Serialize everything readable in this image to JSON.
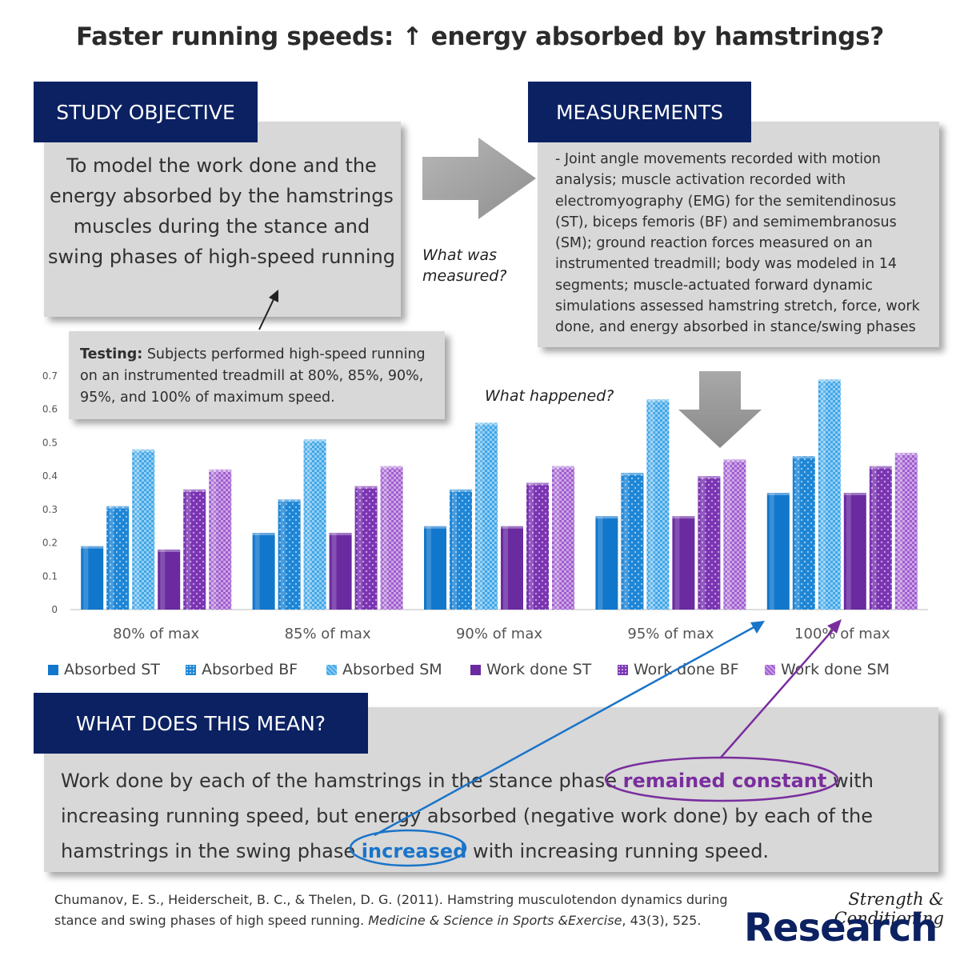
{
  "title": "Faster running speeds: ↑ energy absorbed by hamstrings?",
  "study_objective": {
    "label": "STUDY OBJECTIVE",
    "text": "To model the work done and the energy absorbed by the hamstrings muscles during the stance and swing phases of high-speed running"
  },
  "measurements": {
    "label": "MEASUREMENTS",
    "text": "- Joint angle movements recorded with motion analysis; muscle activation recorded with electromyography (EMG) for the semitendinosus (ST), biceps femoris (BF) and semimembranosus (SM); ground reaction forces measured on an instrumented treadmill; body was modeled in 14 segments; muscle-actuated forward dynamic simulations assessed hamstring stretch, force, work done, and energy absorbed in stance/swing phases"
  },
  "what_measured_label": "What was measured?",
  "what_happened_label": "What happened?",
  "testing": {
    "label": "Testing:",
    "text": " Subjects performed high-speed running on an instrumented treadmill at 80%, 85%, 90%, 95%, and 100% of maximum speed."
  },
  "meaning": {
    "label": "WHAT DOES THIS MEAN?",
    "part1": "Work done by each of the hamstrings in the stance phase ",
    "highlight1": "remained constant",
    "part2": " with increasing running speed, but energy absorbed (negative work done) by each of the hamstrings in the swing phase ",
    "highlight2": "increased",
    "part3": " with increasing running speed."
  },
  "citation": {
    "plain": "Chumanov, E. S., Heiderscheit, B. C., & Thelen, D. G. (2011). Hamstring musculotendon dynamics during stance and swing phases of high speed running. ",
    "journal": "Medicine & Science in Sports &Exercise",
    "tail": ", 43(3), 525."
  },
  "brand": {
    "top": "Strength & Conditioning",
    "bottom": "Research"
  },
  "colors": {
    "navy": "#0b2162",
    "purple_highlight": "#7a2e9e",
    "blue_highlight": "#1a74c9"
  },
  "chart_data": {
    "type": "bar",
    "categories": [
      "80% of max",
      "85% of max",
      "90% of max",
      "95% of max",
      "100% of max"
    ],
    "ylim": [
      0,
      0.7
    ],
    "yticks": [
      "0",
      "0.1",
      "0.2",
      "0.3",
      "0.4",
      "0.5",
      "0.6",
      "0.7"
    ],
    "legend_position": "bottom",
    "grid": false,
    "series": [
      {
        "name": "Absorbed ST",
        "color": "#1177cc",
        "pattern": "solid",
        "values": [
          0.19,
          0.23,
          0.25,
          0.28,
          0.35
        ]
      },
      {
        "name": "Absorbed BF",
        "color": "#1e86d6",
        "pattern": "dots",
        "values": [
          0.31,
          0.33,
          0.36,
          0.41,
          0.46
        ]
      },
      {
        "name": "Absorbed SM",
        "color": "#3ea6e8",
        "pattern": "checker",
        "values": [
          0.48,
          0.51,
          0.56,
          0.63,
          0.69
        ]
      },
      {
        "name": "Work done ST",
        "color": "#6a2aa0",
        "pattern": "solid",
        "values": [
          0.18,
          0.23,
          0.25,
          0.28,
          0.35
        ]
      },
      {
        "name": "Work done BF",
        "color": "#7b35b3",
        "pattern": "dots",
        "values": [
          0.36,
          0.37,
          0.38,
          0.4,
          0.43
        ]
      },
      {
        "name": "Work done SM",
        "color": "#a05cd0",
        "pattern": "checker",
        "values": [
          0.42,
          0.43,
          0.43,
          0.45,
          0.47
        ]
      }
    ]
  }
}
